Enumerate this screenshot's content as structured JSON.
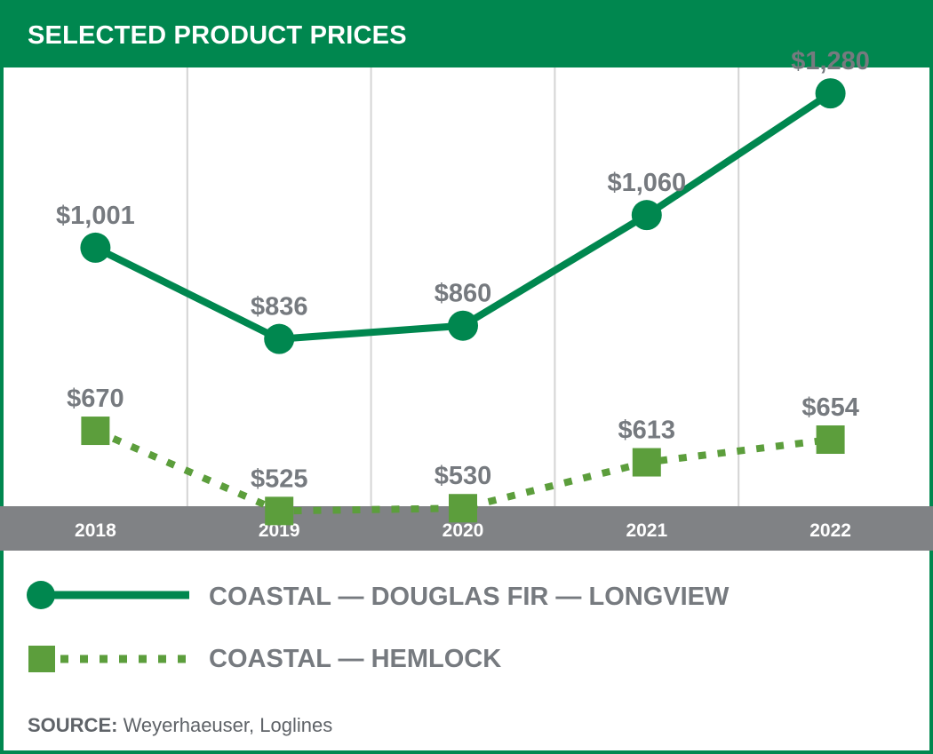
{
  "header": {
    "title": "SELECTED PRODUCT PRICES"
  },
  "colors": {
    "brand_green": "#00874f",
    "light_green": "#5c9e3c",
    "axis_band": "#808285",
    "label_gray": "#767a7f"
  },
  "chart_data": {
    "type": "line",
    "title": "SELECTED PRODUCT PRICES",
    "categories": [
      "2018",
      "2019",
      "2020",
      "2021",
      "2022"
    ],
    "series": [
      {
        "name": "COASTAL — DOUGLAS FIR — LONGVIEW",
        "values": [
          1001,
          836,
          860,
          1060,
          1280
        ],
        "value_labels": [
          "$1,001",
          "$836",
          "$860",
          "$1,060",
          "$1,280"
        ],
        "line_style": "solid",
        "marker": "circle",
        "color": "#00874f"
      },
      {
        "name": "COASTAL — HEMLOCK",
        "values": [
          670,
          525,
          530,
          613,
          654
        ],
        "value_labels": [
          "$670",
          "$525",
          "$530",
          "$613",
          "$654"
        ],
        "line_style": "dotted",
        "marker": "square",
        "color": "#5c9e3c"
      }
    ],
    "ylim": [
      400,
      1400
    ],
    "grid": "vertical",
    "legend": "bottom"
  },
  "footer": {
    "source_label": "SOURCE:",
    "source_text": " Weyerhaeuser, Loglines"
  }
}
